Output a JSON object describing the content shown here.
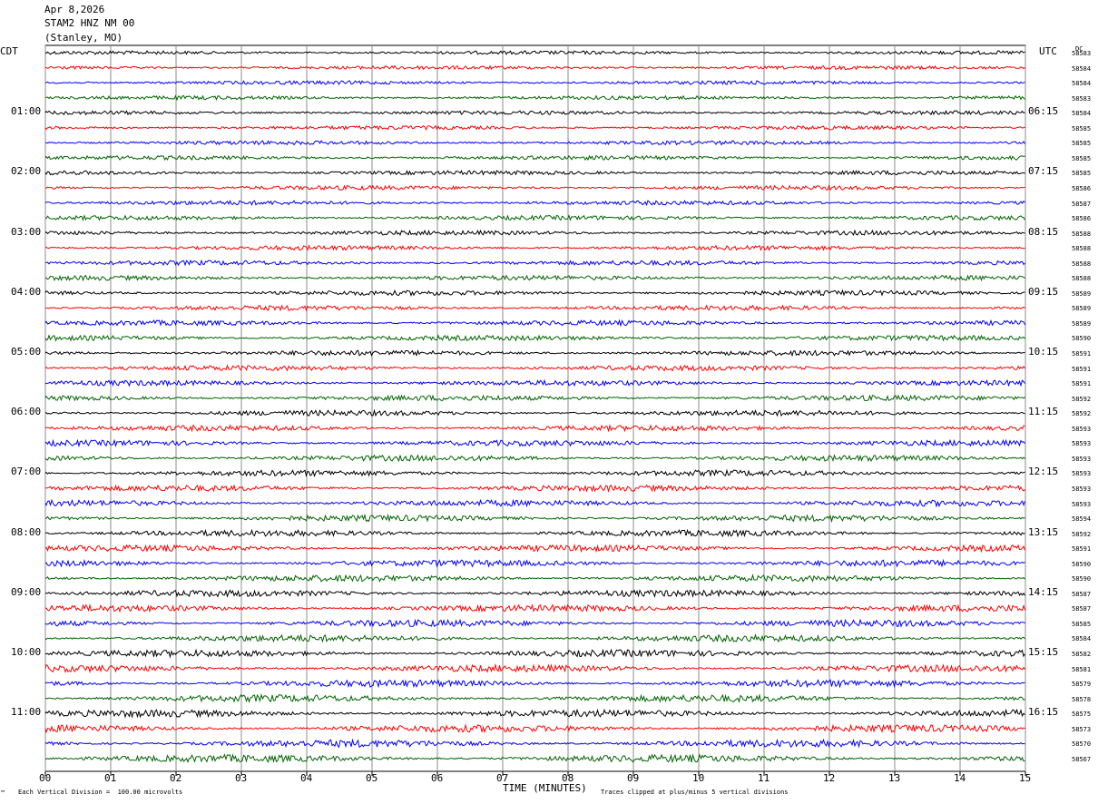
{
  "header": {
    "date": "Apr 8,2026",
    "station": "STAM2 HNZ NM 00",
    "location": "(Stanley, MO)"
  },
  "left_tz": "CDT",
  "right_tz": "UTC",
  "dc_label": "DC",
  "footer": {
    "vertical_division": "Each Vertical Division =  100.00 microvolts",
    "xlabel": "TIME (MINUTES)",
    "clip_note": "Traces clipped at plus/minus 5 vertical divisions",
    "corner_mark": "™"
  },
  "chart_data": {
    "type": "line",
    "xlabel": "TIME (MINUTES)",
    "xlim": [
      0,
      15
    ],
    "x_ticks": [
      "00",
      "01",
      "02",
      "03",
      "04",
      "05",
      "06",
      "07",
      "08",
      "09",
      "10",
      "11",
      "12",
      "13",
      "14",
      "15"
    ],
    "trace_colors": [
      "#000000",
      "#ff0000",
      "#0000ff",
      "#006400"
    ],
    "grid": true,
    "rows_per_hour": 4,
    "left_hour_labels": [
      "01:00",
      "02:00",
      "03:00",
      "04:00",
      "05:00",
      "06:00",
      "07:00",
      "08:00",
      "09:00",
      "10:00",
      "11:00"
    ],
    "right_hour_labels": [
      "06:15",
      "07:15",
      "08:15",
      "09:15",
      "10:15",
      "11:15",
      "12:15",
      "13:15",
      "14:15",
      "15:15",
      "16:15"
    ],
    "dc_offsets": [
      "58583",
      "58584",
      "58584",
      "58583",
      "58584",
      "58585",
      "58585",
      "58585",
      "58585",
      "58586",
      "58587",
      "58586",
      "58588",
      "58588",
      "58588",
      "58588",
      "58589",
      "58589",
      "58589",
      "58590",
      "58591",
      "58591",
      "58591",
      "58592",
      "58592",
      "58593",
      "58593",
      "58593",
      "58593",
      "58593",
      "58593",
      "58594",
      "58592",
      "58591",
      "58590",
      "58590",
      "58587",
      "58587",
      "58585",
      "58584",
      "58582",
      "58581",
      "58579",
      "58578",
      "58575",
      "58573",
      "58570",
      "58567"
    ]
  }
}
